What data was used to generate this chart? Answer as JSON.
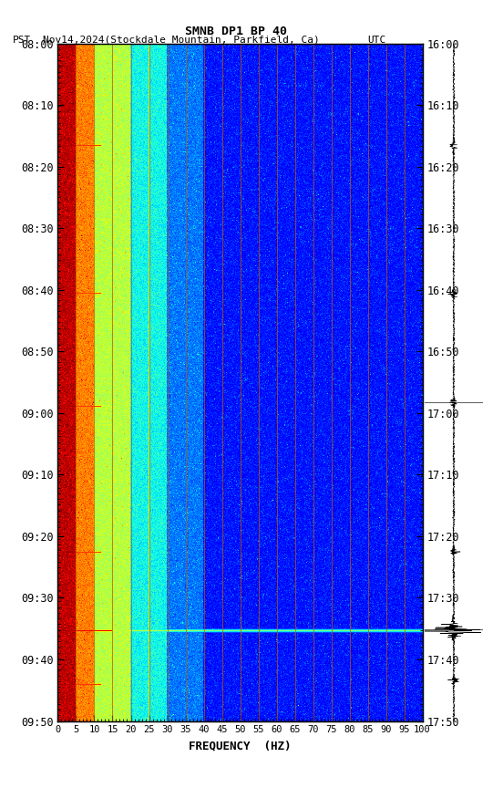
{
  "title": "SMNB DP1 BP 40",
  "subtitle_left": "PST",
  "subtitle_center": "Nov14,2024(Stockdale Mountain, Parkfield, Ca)",
  "subtitle_right": "UTC",
  "y_left_labels": [
    "08:00",
    "08:10",
    "08:20",
    "08:30",
    "08:40",
    "08:50",
    "09:00",
    "09:10",
    "09:20",
    "09:30",
    "09:40",
    "09:50"
  ],
  "y_right_labels": [
    "16:00",
    "16:10",
    "16:20",
    "16:30",
    "16:40",
    "16:50",
    "17:00",
    "17:10",
    "17:20",
    "17:30",
    "17:40",
    "17:50"
  ],
  "x_ticks": [
    0,
    5,
    10,
    15,
    20,
    25,
    30,
    35,
    40,
    45,
    50,
    55,
    60,
    65,
    70,
    75,
    80,
    85,
    90,
    95,
    100
  ],
  "xlabel": "FREQUENCY  (HZ)",
  "freq_min": 0,
  "freq_max": 100,
  "n_time": 720,
  "n_freq": 400,
  "grid_color": "#bb5500",
  "grid_linewidth": 0.6,
  "bright_time_rows": [
    108,
    265,
    385,
    540,
    623,
    680
  ],
  "event_row": 623,
  "waveform_events": [
    0.15,
    0.37,
    0.53,
    0.75,
    0.865,
    0.94
  ]
}
